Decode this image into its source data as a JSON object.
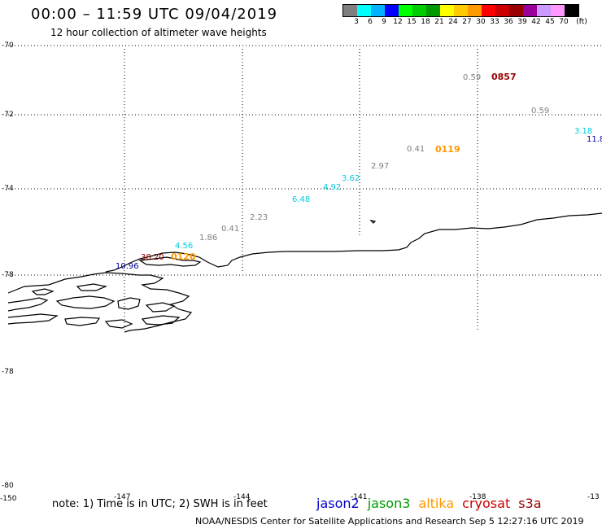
{
  "title": "00:00 – 11:59 UTC 09/04/2019",
  "subtitle": "12 hour collection of altimeter wave heights",
  "legend": {
    "colors": [
      "#7f7f7f",
      "#00ffff",
      "#00b2ff",
      "#0000ff",
      "#00ff00",
      "#00cc00",
      "#009900",
      "#ffff00",
      "#ffcc00",
      "#ff9900",
      "#ff0000",
      "#cc0000",
      "#990000",
      "#990099",
      "#cc99ff",
      "#ff99ff",
      "#000000"
    ],
    "labels": [
      "3",
      "6",
      "9",
      "12",
      "15",
      "18",
      "21",
      "24",
      "27",
      "30",
      "33",
      "36",
      "39",
      "42",
      "45",
      "70",
      "(ft)"
    ]
  },
  "lat_labels": [
    "-70",
    "-72",
    "-74",
    "-78",
    "-78",
    "-80"
  ],
  "lon_labels": [
    "-150",
    "-147",
    "-144",
    "-141",
    "-138",
    "-13"
  ],
  "wave_heights": [
    {
      "text": "0.59",
      "color": "#808080"
    },
    {
      "text": "0.59",
      "color": "#808080"
    },
    {
      "text": "3.18",
      "color": "#00ccdd"
    },
    {
      "text": "11.8",
      "color": "#0000aa"
    },
    {
      "text": "0.41",
      "color": "#808080"
    },
    {
      "text": "2.97",
      "color": "#808080"
    },
    {
      "text": "3.62",
      "color": "#00ccdd"
    },
    {
      "text": "4.92",
      "color": "#00ccdd"
    },
    {
      "text": "6.48",
      "color": "#00ccdd"
    },
    {
      "text": "2.23",
      "color": "#808080"
    },
    {
      "text": "0.41",
      "color": "#808080"
    },
    {
      "text": "1.86",
      "color": "#808080"
    },
    {
      "text": "4.56",
      "color": "#00ccdd"
    },
    {
      "text": "38.20",
      "color": "#990000"
    },
    {
      "text": "10.96",
      "color": "#000099"
    }
  ],
  "pass_times": [
    {
      "text": "0857",
      "color": "#990000"
    },
    {
      "text": "0119",
      "color": "#ff9900"
    },
    {
      "text": "0120",
      "color": "#ff9900"
    }
  ],
  "note": "note: 1) Time is in UTC; 2) SWH is in feet",
  "satellites": [
    {
      "name": "jason2",
      "color": "#0000cc"
    },
    {
      "name": "jason3",
      "color": "#009900"
    },
    {
      "name": "altika",
      "color": "#ff9900"
    },
    {
      "name": "cryosat",
      "color": "#cc0000"
    },
    {
      "name": "s3a",
      "color": "#990000"
    }
  ],
  "credit": "NOAA/NESDIS Center for Satellite Applications and Research   Sep  5 12:27:16 UTC 2019"
}
